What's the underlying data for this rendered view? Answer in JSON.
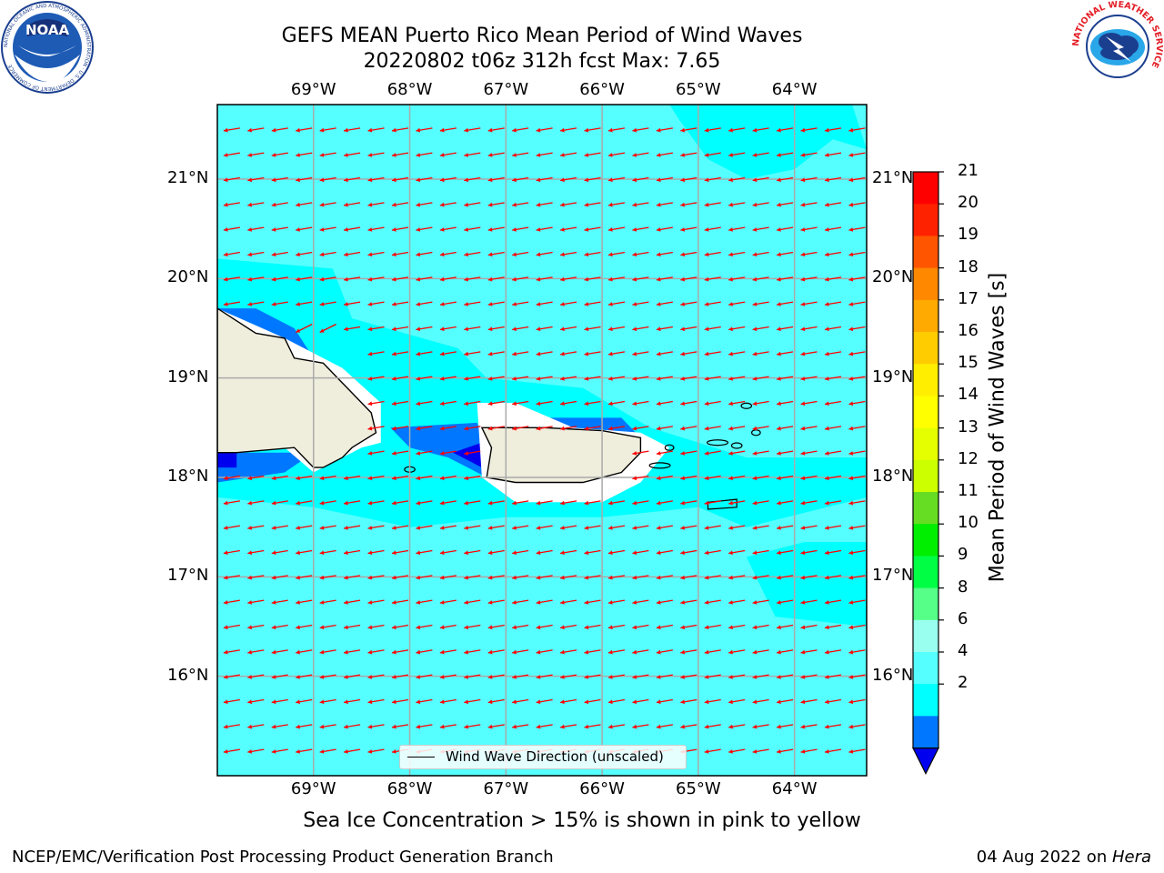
{
  "title": {
    "line1": "GEFS MEAN Puerto Rico Mean Period of Wind Waves",
    "line2": "20220802 t06z 312h fcst   Max: 7.65"
  },
  "map": {
    "lon_labels": [
      "69°W",
      "68°W",
      "67°W",
      "66°W",
      "65°W",
      "64°W"
    ],
    "lat_labels": [
      "21°N",
      "20°N",
      "19°N",
      "18°N",
      "17°N",
      "16°N"
    ],
    "lon_values": [
      -69,
      -68,
      -67,
      -66,
      -65,
      -64
    ],
    "lat_values": [
      21,
      20,
      19,
      18,
      17,
      16
    ],
    "extent": {
      "lon_min": -70,
      "lon_max": -63.25,
      "lat_min": 15,
      "lat_max": 21.75
    },
    "land_color": "#efeddc",
    "ocean_color": "#00ffff",
    "arrow_color": "#ff0000",
    "legend_label": "Wind Wave Direction (unscaled)"
  },
  "colorbar": {
    "label": "Mean Period of Wind Waves [s]",
    "ticks": [
      "21",
      "20",
      "19",
      "18",
      "17",
      "16",
      "15",
      "14",
      "13",
      "12",
      "11",
      "10",
      "9",
      "8",
      "6",
      "4",
      "2"
    ],
    "colors": [
      "#ff0000",
      "#ff2200",
      "#ff5500",
      "#ff8800",
      "#ffaa00",
      "#ffcc00",
      "#ffee00",
      "#ffff00",
      "#e6ff00",
      "#ccff00",
      "#66dd22",
      "#00ee00",
      "#00ff44",
      "#55ff88",
      "#99ffee",
      "#55ffff",
      "#00ffff",
      "#0077ff"
    ],
    "extend_color": "#0000ee"
  },
  "subtitle": "Sea Ice Concentration > 15% is shown in pink to yellow",
  "footer": {
    "left": "NCEP/EMC/Verification Post Processing Product Generation Branch",
    "date": "04 Aug 2022 on ",
    "host": "Hera"
  },
  "logos": {
    "noaa_text": "NOAA",
    "noaa_ring": "NATIONAL OCEANIC AND ATMOSPHERIC ADMINISTRATION · U.S. DEPARTMENT OF COMMERCE",
    "nws_ring": "NATIONAL WEATHER SERVICE"
  }
}
